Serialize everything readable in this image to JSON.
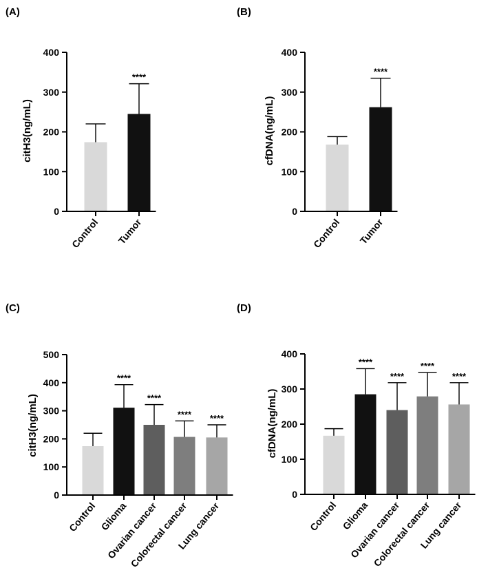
{
  "chart_data": [
    {
      "panel": "(A)",
      "type": "bar",
      "categories": [
        "Control",
        "Tumor"
      ],
      "values": [
        174,
        245
      ],
      "errors": [
        46,
        76
      ],
      "colors": [
        "#d9d9d9",
        "#111111"
      ],
      "annotations": [
        "",
        "****"
      ],
      "ylabel": "citH3(ng/mL)",
      "xlabel": "",
      "ylim": [
        0,
        400
      ],
      "yticks": [
        "0",
        "100",
        "200",
        "300",
        "400"
      ]
    },
    {
      "panel": "(B)",
      "type": "bar",
      "categories": [
        "Control",
        "Tumor"
      ],
      "values": [
        168,
        262
      ],
      "errors": [
        20,
        73
      ],
      "colors": [
        "#d9d9d9",
        "#111111"
      ],
      "annotations": [
        "",
        "****"
      ],
      "ylabel": "cfDNA(ng/mL)",
      "xlabel": "",
      "ylim": [
        0,
        400
      ],
      "yticks": [
        "0",
        "100",
        "200",
        "300",
        "400"
      ]
    },
    {
      "panel": "(C)",
      "type": "bar",
      "categories": [
        "Control",
        "Glioma",
        "Ovarian cancer",
        "Colorectal cancer",
        "Lung cancer"
      ],
      "values": [
        174,
        311,
        250,
        207,
        205
      ],
      "errors": [
        46,
        82,
        72,
        57,
        45
      ],
      "colors": [
        "#d9d9d9",
        "#111111",
        "#5e5e5e",
        "#7e7e7e",
        "#a6a6a6"
      ],
      "annotations": [
        "",
        "****",
        "****",
        "****",
        "****"
      ],
      "ylabel": "citH3(ng/mL)",
      "xlabel": "",
      "ylim": [
        0,
        500
      ],
      "yticks": [
        "0",
        "100",
        "200",
        "300",
        "400",
        "500"
      ]
    },
    {
      "panel": "(D)",
      "type": "bar",
      "categories": [
        "Control",
        "Glioma",
        "Ovarian cancer",
        "Colorectal cancer",
        "Lung cancer"
      ],
      "values": [
        167,
        285,
        240,
        279,
        256
      ],
      "errors": [
        20,
        73,
        78,
        68,
        62
      ],
      "colors": [
        "#d9d9d9",
        "#111111",
        "#5e5e5e",
        "#7e7e7e",
        "#a6a6a6"
      ],
      "annotations": [
        "",
        "****",
        "****",
        "****",
        "****"
      ],
      "ylabel": "cfDNA(ng/mL)",
      "xlabel": "",
      "ylim": [
        0,
        400
      ],
      "yticks": [
        "0",
        "100",
        "200",
        "300",
        "400"
      ]
    }
  ]
}
